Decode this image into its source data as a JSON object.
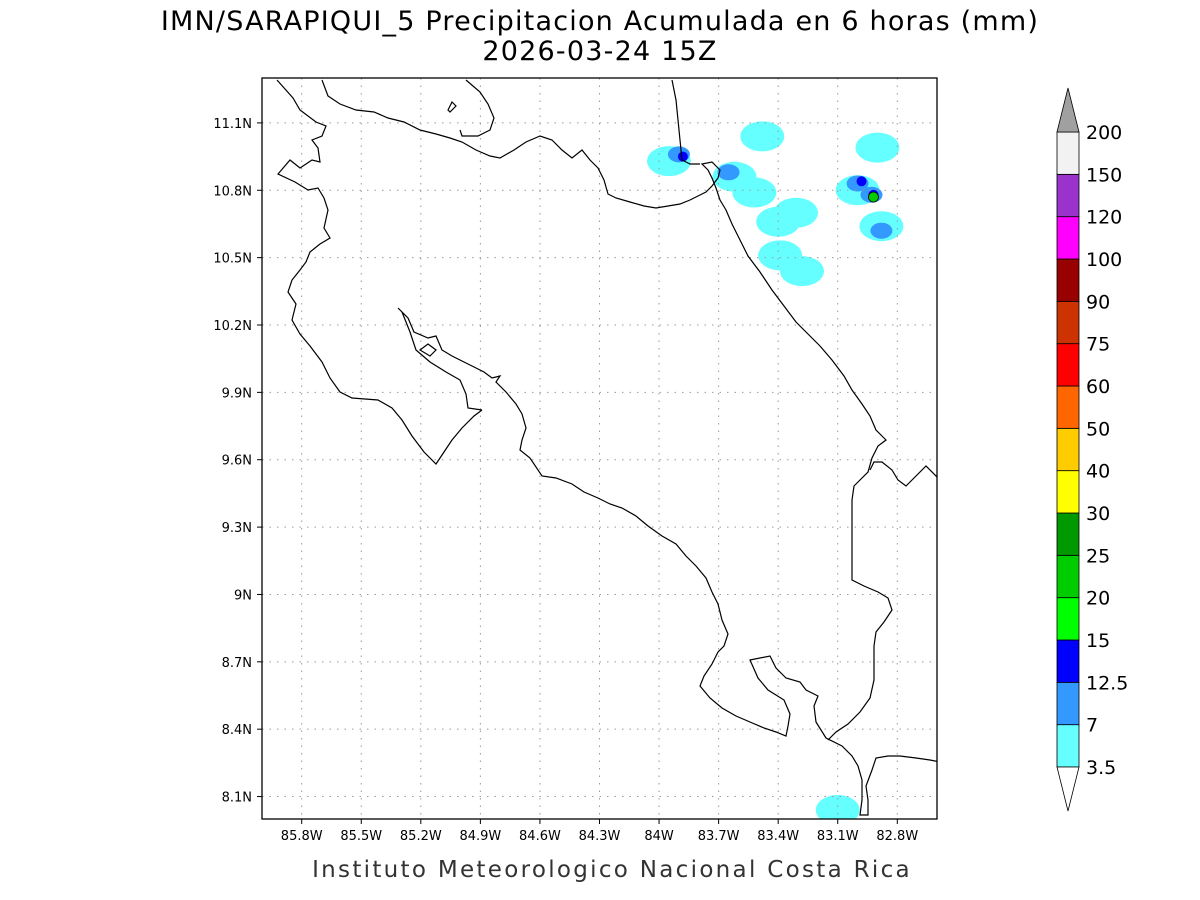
{
  "title": {
    "line1": "IMN/SARAPIQUI_5 Precipitacion Acumulada en 6 horas (mm)",
    "line2": "2026-03-24 15Z"
  },
  "footer": "Instituto Meteorologico Nacional Costa Rica",
  "axes": {
    "lon_range": [
      -86.0,
      -82.6
    ],
    "lat_range": [
      8.0,
      11.3
    ],
    "lon_ticks": [
      {
        "value": -85.8,
        "label": "85.8W"
      },
      {
        "value": -85.5,
        "label": "85.5W"
      },
      {
        "value": -85.2,
        "label": "85.2W"
      },
      {
        "value": -84.9,
        "label": "84.9W"
      },
      {
        "value": -84.6,
        "label": "84.6W"
      },
      {
        "value": -84.3,
        "label": "84.3W"
      },
      {
        "value": -84.0,
        "label": "84W"
      },
      {
        "value": -83.7,
        "label": "83.7W"
      },
      {
        "value": -83.4,
        "label": "83.4W"
      },
      {
        "value": -83.1,
        "label": "83.1W"
      },
      {
        "value": -82.8,
        "label": "82.8W"
      }
    ],
    "lat_ticks": [
      {
        "value": 11.1,
        "label": "11.1N"
      },
      {
        "value": 10.8,
        "label": "10.8N"
      },
      {
        "value": 10.5,
        "label": "10.5N"
      },
      {
        "value": 10.2,
        "label": "10.2N"
      },
      {
        "value": 9.9,
        "label": "9.9N"
      },
      {
        "value": 9.6,
        "label": "9.6N"
      },
      {
        "value": 9.3,
        "label": "9.3N"
      },
      {
        "value": 9.0,
        "label": "9N"
      },
      {
        "value": 8.7,
        "label": "8.7N"
      },
      {
        "value": 8.4,
        "label": "8.4N"
      },
      {
        "value": 8.1,
        "label": "8.1N"
      }
    ],
    "grid": "dotted"
  },
  "colorbar": {
    "unit": "mm",
    "levels": [
      {
        "label": "3.5",
        "color": "#66ffff"
      },
      {
        "label": "7",
        "color": "#3399ff"
      },
      {
        "label": "12.5",
        "color": "#0000ff"
      },
      {
        "label": "15",
        "color": "#00ff00"
      },
      {
        "label": "20",
        "color": "#00cc00"
      },
      {
        "label": "25",
        "color": "#009900"
      },
      {
        "label": "30",
        "color": "#ffff00"
      },
      {
        "label": "40",
        "color": "#ffcc00"
      },
      {
        "label": "50",
        "color": "#ff6600"
      },
      {
        "label": "60",
        "color": "#ff0000"
      },
      {
        "label": "75",
        "color": "#cc3300"
      },
      {
        "label": "90",
        "color": "#990000"
      },
      {
        "label": "100",
        "color": "#ff00ff"
      },
      {
        "label": "120",
        "color": "#9933cc"
      },
      {
        "label": "150",
        "color": "#f2f2f2"
      },
      {
        "label": "200",
        "color": "#a0a0a0"
      }
    ]
  },
  "precip_cells": [
    {
      "lon": -83.95,
      "lat": 10.93,
      "level": "3.5"
    },
    {
      "lon": -83.9,
      "lat": 10.96,
      "level": "7"
    },
    {
      "lon": -83.88,
      "lat": 10.95,
      "level": "12.5"
    },
    {
      "lon": -83.62,
      "lat": 10.86,
      "level": "3.5"
    },
    {
      "lon": -83.65,
      "lat": 10.88,
      "level": "7"
    },
    {
      "lon": -83.48,
      "lat": 11.04,
      "level": "3.5"
    },
    {
      "lon": -83.52,
      "lat": 10.79,
      "level": "3.5"
    },
    {
      "lon": -83.4,
      "lat": 10.66,
      "level": "3.5"
    },
    {
      "lon": -83.31,
      "lat": 10.7,
      "level": "3.5"
    },
    {
      "lon": -83.39,
      "lat": 10.51,
      "level": "3.5"
    },
    {
      "lon": -83.28,
      "lat": 10.44,
      "level": "3.5"
    },
    {
      "lon": -83.0,
      "lat": 10.8,
      "level": "3.5"
    },
    {
      "lon": -83.0,
      "lat": 10.83,
      "level": "7"
    },
    {
      "lon": -82.98,
      "lat": 10.84,
      "level": "12.5"
    },
    {
      "lon": -82.93,
      "lat": 10.78,
      "level": "7"
    },
    {
      "lon": -82.92,
      "lat": 10.78,
      "level": "12.5"
    },
    {
      "lon": -82.92,
      "lat": 10.77,
      "level": "20"
    },
    {
      "lon": -82.88,
      "lat": 10.64,
      "level": "3.5"
    },
    {
      "lon": -82.88,
      "lat": 10.62,
      "level": "7"
    },
    {
      "lon": -82.9,
      "lat": 10.99,
      "level": "3.5"
    },
    {
      "lon": -83.1,
      "lat": 8.04,
      "level": "3.5"
    }
  ]
}
